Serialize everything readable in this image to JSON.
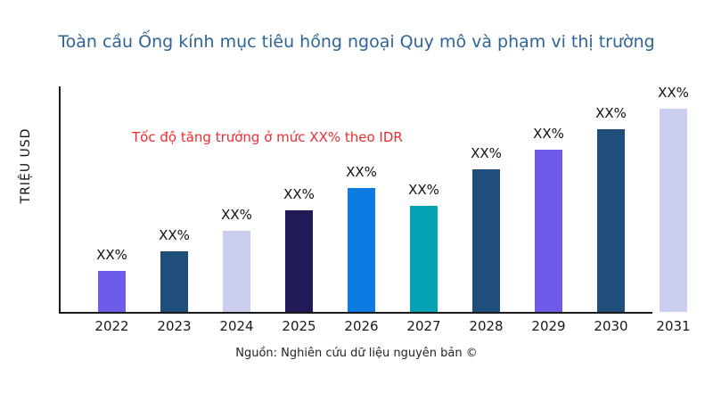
{
  "chart_data": {
    "type": "bar",
    "title": "Toàn cầu Ống kính mục tiêu hồng ngoại Quy mô và phạm vi thị trường",
    "title_color": "#2e6496",
    "ylabel": "TRIỆU USD",
    "xlabel": "",
    "categories": [
      "2022",
      "2023",
      "2024",
      "2025",
      "2026",
      "2027",
      "2028",
      "2029",
      "2030",
      "2031"
    ],
    "value_labels": [
      "XX%",
      "XX%",
      "XX%",
      "XX%",
      "XX%",
      "XX%",
      "XX%",
      "XX%",
      "XX%",
      "XX%"
    ],
    "values_pct_of_max_estimated": [
      20,
      30,
      40,
      50,
      61,
      52,
      70,
      80,
      90,
      100
    ],
    "bar_colors": [
      "#6d5ce8",
      "#1f4e7b",
      "#c9cdee",
      "#201a56",
      "#0e7be2",
      "#04a2b3",
      "#1f4e7b",
      "#6d5ce8",
      "#1f4e7b",
      "#c9cdee"
    ],
    "annotation": {
      "text": "Tốc độ tăng trưởng ở mức XX% theo IDR",
      "color": "#ed2d30"
    },
    "source": "Nguồn: Nghiên cứu dữ liệu nguyên bản ©",
    "grid": false,
    "legend": false,
    "y_axis_ticks": []
  }
}
